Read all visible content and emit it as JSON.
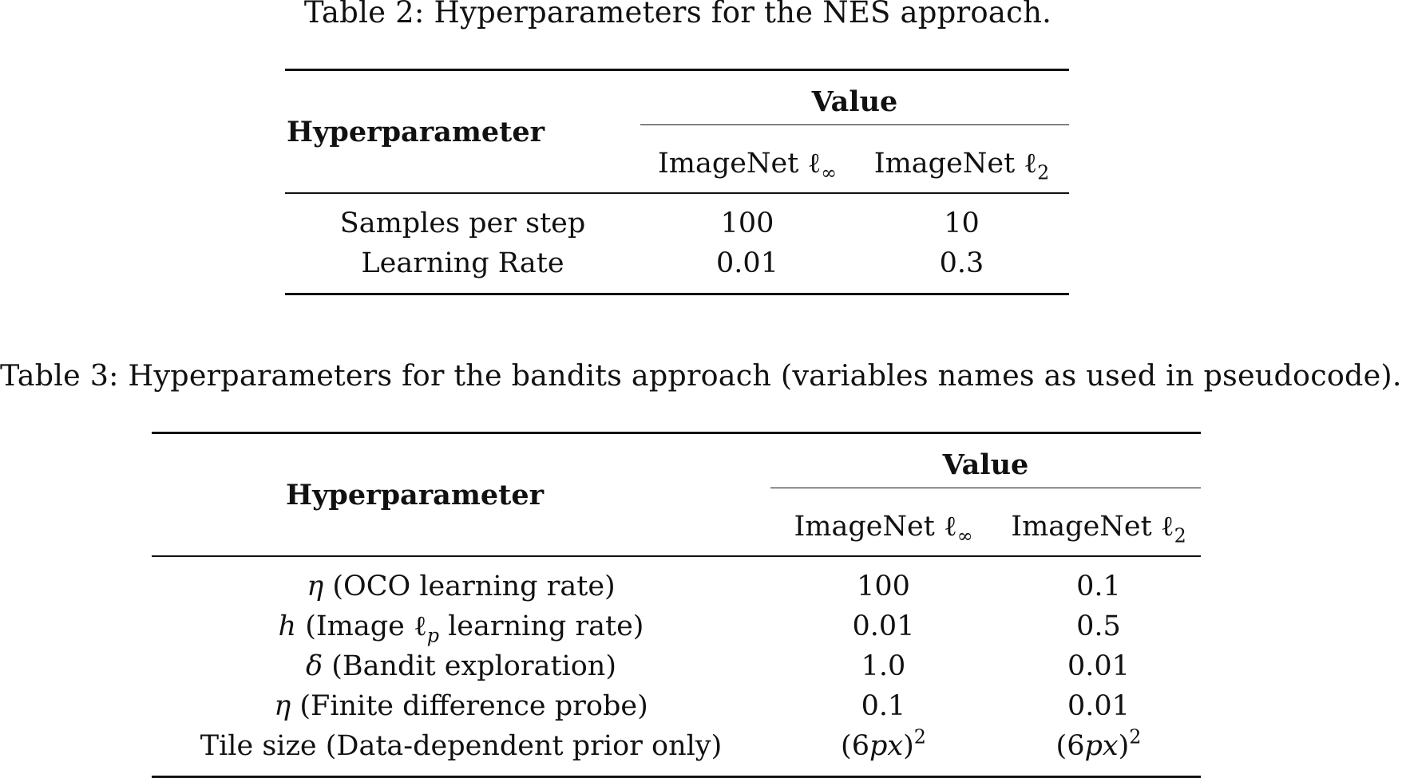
{
  "table2": {
    "caption": "Table 2: Hyperparameters for the NES approach.",
    "header_param": "Hyperparameter",
    "header_value": "Value",
    "columns": [
      "ImageNet ℓ",
      "ImageNet ℓ"
    ],
    "column_subscripts": [
      "∞",
      "2"
    ],
    "rows": [
      {
        "param": "Samples per step",
        "v1": "100",
        "v2": "10"
      },
      {
        "param": "Learning Rate",
        "v1": "0.01",
        "v2": "0.3"
      }
    ]
  },
  "table3": {
    "caption": "Table 3: Hyperparameters for the bandits approach (variables names as used in pseudocode).",
    "header_param": "Hyperparameter",
    "header_value": "Value",
    "columns": [
      "ImageNet ℓ",
      "ImageNet ℓ"
    ],
    "column_subscripts": [
      "∞",
      "2"
    ],
    "rows": [
      {
        "symbol": "η",
        "param": " (OCO learning rate)",
        "v1": "100",
        "v2": "0.1"
      },
      {
        "symbol": "h",
        "param_pre": " (Image ℓ",
        "param_sub": "p",
        "param_post": " learning rate)",
        "v1": "0.01",
        "v2": "0.5"
      },
      {
        "symbol": "δ",
        "param": " (Bandit exploration)",
        "v1": "1.0",
        "v2": "0.01"
      },
      {
        "symbol": "η",
        "param": " (Finite difference probe)",
        "v1": "0.1",
        "v2": "0.01"
      },
      {
        "param": "Tile size (Data-dependent prior only)",
        "v1_pre": "(6",
        "v1_it": "px",
        "v1_post": ")",
        "v1_sup": "2",
        "v2_pre": "(6",
        "v2_it": "px",
        "v2_post": ")",
        "v2_sup": "2"
      }
    ]
  }
}
